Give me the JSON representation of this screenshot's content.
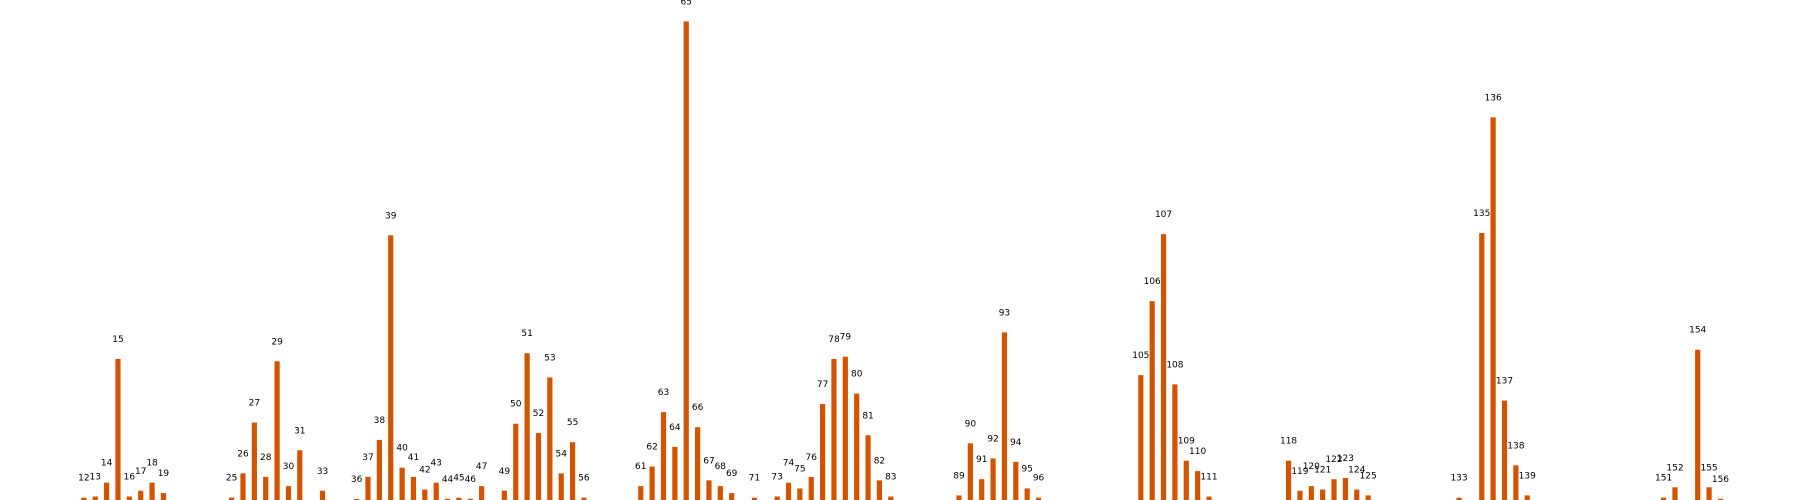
{
  "chart_data": {
    "type": "bar",
    "x": [
      12,
      13,
      14,
      15,
      16,
      17,
      18,
      19,
      25,
      26,
      27,
      28,
      29,
      30,
      31,
      33,
      36,
      37,
      38,
      39,
      40,
      41,
      42,
      43,
      44,
      45,
      46,
      47,
      49,
      50,
      51,
      52,
      53,
      54,
      55,
      56,
      61,
      62,
      63,
      64,
      65,
      66,
      67,
      68,
      69,
      71,
      73,
      74,
      75,
      76,
      77,
      78,
      79,
      80,
      81,
      82,
      83,
      89,
      90,
      91,
      92,
      93,
      94,
      95,
      96,
      105,
      106,
      107,
      108,
      109,
      110,
      111,
      118,
      119,
      120,
      121,
      122,
      123,
      124,
      125,
      133,
      135,
      136,
      137,
      138,
      139,
      151,
      152,
      154,
      155,
      156
    ],
    "labels": [
      "12",
      "13",
      "14",
      "15",
      "16",
      "17",
      "18",
      "19",
      "25",
      "26",
      "27",
      "28",
      "29",
      "30",
      "31",
      "33",
      "36",
      "37",
      "38",
      "39",
      "40",
      "41",
      "42",
      "43",
      "44",
      "45",
      "46",
      "47",
      "49",
      "50",
      "51",
      "52",
      "53",
      "54",
      "55",
      "56",
      "61",
      "62",
      "63",
      "64",
      "65",
      "66",
      "67",
      "68",
      "69",
      "71",
      "73",
      "74",
      "75",
      "76",
      "77",
      "78",
      "79",
      "80",
      "81",
      "82",
      "83",
      "89",
      "90",
      "91",
      "92",
      "93",
      "94",
      "95",
      "96",
      "105",
      "106",
      "107",
      "108",
      "109",
      "110",
      "111",
      "118",
      "119",
      "120",
      "121",
      "122",
      "123",
      "124",
      "125",
      "133",
      "135",
      "136",
      "137",
      "138",
      "139",
      "151",
      "152",
      "154",
      "155",
      "156"
    ],
    "values": [
      2,
      3,
      15,
      122,
      3,
      8,
      15,
      6,
      2,
      23,
      67,
      20,
      120,
      12,
      43,
      8,
      1,
      20,
      52,
      229,
      28,
      20,
      9,
      15,
      1,
      2,
      1,
      12,
      8,
      66,
      127,
      58,
      106,
      23,
      50,
      2,
      12,
      29,
      76,
      46,
      414,
      63,
      17,
      12,
      6,
      2,
      3,
      15,
      10,
      20,
      83,
      122,
      124,
      92,
      56,
      17,
      3,
      4,
      49,
      18,
      36,
      145,
      33,
      10,
      2,
      108,
      172,
      230,
      100,
      34,
      25,
      3,
      34,
      8,
      12,
      9,
      18,
      19,
      9,
      4,
      2,
      231,
      331,
      86,
      30,
      4,
      2,
      11,
      130,
      11,
      1
    ],
    "color": "#d35400",
    "grid": false,
    "axes_visible": false
  }
}
